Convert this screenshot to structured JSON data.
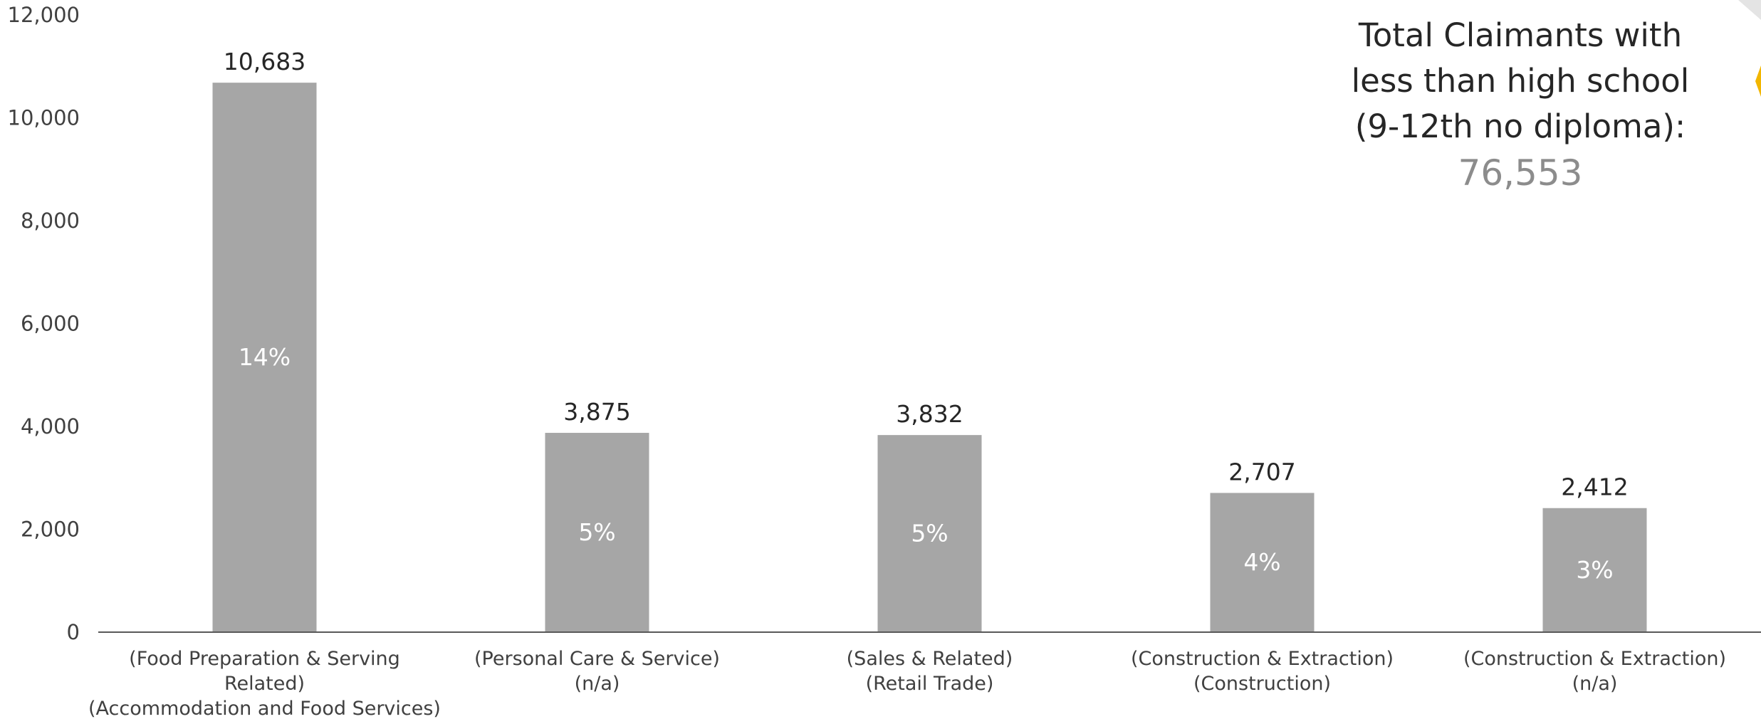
{
  "chart_data": {
    "type": "bar",
    "categories": [
      [
        "(Food Preparation & Serving",
        "Related)",
        "(Accommodation and Food Services)"
      ],
      [
        "(Personal Care & Service)",
        "(n/a)"
      ],
      [
        "(Sales & Related)",
        "(Retail Trade)"
      ],
      [
        "(Construction & Extraction)",
        "(Construction)"
      ],
      [
        "(Construction & Extraction)",
        "(n/a)"
      ]
    ],
    "values": [
      10683,
      3875,
      3832,
      2707,
      2412
    ],
    "value_labels": [
      "10,683",
      "3,875",
      "3,832",
      "2,707",
      "2,412"
    ],
    "percent_labels": [
      "14%",
      "5%",
      "5%",
      "4%",
      "3%"
    ],
    "ylim": [
      0,
      12000
    ],
    "yticks": [
      0,
      2000,
      4000,
      6000,
      8000,
      10000,
      12000
    ],
    "ytick_labels": [
      "0",
      "2,000",
      "4,000",
      "6,000",
      "8,000",
      "10,000",
      "12,000"
    ],
    "bar_color": "#a6a6a6",
    "axis_color": "#595959",
    "grid": false
  },
  "summary": {
    "lines": [
      "Total Claimants with",
      "less than high school",
      "(9-12th no diploma):"
    ],
    "total": "76,553"
  },
  "decoration_color": "#f2b600"
}
